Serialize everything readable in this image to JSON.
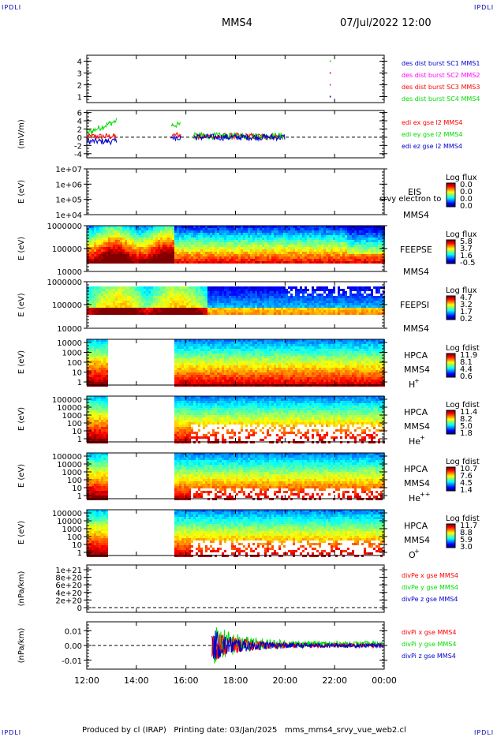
{
  "corners": {
    "tl": "IPDLI",
    "tr": "IPDLI",
    "bl": "IPDLI",
    "br": "IPDLI"
  },
  "header": {
    "title": "MMS4",
    "datetime": "07/Jul/2022 12:00"
  },
  "footer": "Produced by cl (IRAP)   Printing date: 03/Jan/2025   mms_mms4_srvy_vue_web2.cl",
  "colors": {
    "red": "#ff0000",
    "green": "#00dd00",
    "blue": "#0000cc",
    "magenta": "#ff00ff",
    "frame": "#000000"
  },
  "chart_data": [
    {
      "type": "scatter",
      "id": "burst",
      "y_ticks": [
        "1",
        "2",
        "3",
        "4"
      ],
      "ylim": [
        0.5,
        4.5
      ],
      "legend": [
        {
          "label": "des dist burst SC1 MMS1",
          "color": "#0000cc"
        },
        {
          "label": "des dist burst SC2 MMS2",
          "color": "#ff00ff"
        },
        {
          "label": "des dist burst SC3 MMS3",
          "color": "#ff0000"
        },
        {
          "label": "des dist burst SC4 MMS4",
          "color": "#00dd00"
        }
      ],
      "points": [
        {
          "x": 21.8,
          "y": 1,
          "c": "#0000cc"
        },
        {
          "x": 21.8,
          "y": 2,
          "c": "#ff00ff"
        },
        {
          "x": 21.8,
          "y": 3,
          "c": "#ff0000"
        },
        {
          "x": 21.8,
          "y": 4,
          "c": "#00dd00"
        }
      ]
    },
    {
      "type": "line",
      "id": "edi",
      "ylabel": "(mV/m)",
      "y_ticks": [
        "-4",
        "-2",
        "0",
        "2",
        "4",
        "6"
      ],
      "ylim": [
        -5,
        6.5
      ],
      "legend": [
        {
          "label": "edi ex gse l2 MMS4",
          "color": "#ff0000"
        },
        {
          "label": "edi ey gse l2 MMS4",
          "color": "#00dd00"
        },
        {
          "label": "edi ez gse l2 MMS4",
          "color": "#0000cc"
        }
      ],
      "segments": [
        [
          12.0,
          13.2
        ],
        [
          15.4,
          15.8
        ],
        [
          16.3,
          20.0
        ]
      ]
    },
    {
      "type": "heatmap",
      "id": "eis",
      "ylabel": "E (eV)",
      "y_ticks": [
        "1e+07",
        "1e+06",
        "1e+05",
        "1e+04"
      ],
      "labels": [
        "EIS",
        "MMS4"
      ],
      "overlay": "srvy electron to",
      "colorbar": {
        "title": "Log flux",
        "values": [
          "0.0",
          "0.0",
          "0.0",
          "0.0"
        ]
      }
    },
    {
      "type": "heatmap",
      "id": "feepse",
      "ylabel": "E (eV)",
      "y_ticks": [
        "1000000",
        "100000",
        "10000"
      ],
      "labels": [
        "FEEPSE",
        "MMS4"
      ],
      "colorbar": {
        "title": "Log flux",
        "values": [
          "5.8",
          "3.7",
          "1.6",
          "-0.5"
        ]
      }
    },
    {
      "type": "heatmap",
      "id": "feepsi",
      "ylabel": "E (eV)",
      "y_ticks": [
        "1000000",
        "100000",
        "10000"
      ],
      "labels": [
        "FEEPSI",
        "MMS4"
      ],
      "colorbar": {
        "title": "Log flux",
        "values": [
          "4.7",
          "3.2",
          "1.7",
          "0.2"
        ]
      }
    },
    {
      "type": "heatmap",
      "id": "hpca_h",
      "ylabel": "E (eV)",
      "y_ticks": [
        "10000",
        "1000",
        "100",
        "10",
        "1"
      ],
      "labels": [
        "HPCA",
        "MMS4"
      ],
      "species": "H",
      "charge": "+",
      "colorbar": {
        "title": "Log fdist",
        "values": [
          "11.9",
          "8.1",
          "4.4",
          "0.6"
        ]
      }
    },
    {
      "type": "heatmap",
      "id": "hpca_he1",
      "ylabel": "E (eV)",
      "y_ticks": [
        "100000",
        "10000",
        "1000",
        "100",
        "10",
        "1"
      ],
      "labels": [
        "HPCA",
        "MMS4"
      ],
      "species": "He",
      "charge": "+",
      "colorbar": {
        "title": "Log fdist",
        "values": [
          "11.4",
          "8.2",
          "5.0",
          "1.8"
        ]
      }
    },
    {
      "type": "heatmap",
      "id": "hpca_he2",
      "ylabel": "E (eV)",
      "y_ticks": [
        "100000",
        "10000",
        "1000",
        "100",
        "10",
        "1"
      ],
      "labels": [
        "HPCA",
        "MMS4"
      ],
      "species": "He",
      "charge": "++",
      "colorbar": {
        "title": "Log fdist",
        "values": [
          "10.7",
          "7.6",
          "4.5",
          "1.4"
        ]
      }
    },
    {
      "type": "heatmap",
      "id": "hpca_o",
      "ylabel": "E (eV)",
      "y_ticks": [
        "100000",
        "10000",
        "1000",
        "100",
        "10",
        "1"
      ],
      "labels": [
        "HPCA",
        "MMS4"
      ],
      "species": "O",
      "charge": "+",
      "colorbar": {
        "title": "Log fdist",
        "values": [
          "11.7",
          "8.8",
          "5.9",
          "3.0"
        ]
      }
    },
    {
      "type": "line",
      "id": "divpe",
      "ylabel": "(nPa/km)",
      "y_ticks": [
        "1e+21",
        "8e+20",
        "6e+20",
        "4e+20",
        "2e+20",
        "0"
      ],
      "ylim": [
        0,
        1e+21
      ],
      "legend": [
        {
          "label": "divPe x gse MMS4",
          "color": "#ff0000"
        },
        {
          "label": "divPe y gse MMS4",
          "color": "#00dd00"
        },
        {
          "label": "divPe z gse MMS4",
          "color": "#0000cc"
        }
      ]
    },
    {
      "type": "line",
      "id": "divpi",
      "ylabel": "(nPa/km)",
      "y_ticks": [
        "0.01",
        "0.00",
        "-0.01"
      ],
      "ylim": [
        -0.016,
        0.016
      ],
      "legend": [
        {
          "label": "divPi x gse MMS4",
          "color": "#ff0000"
        },
        {
          "label": "divPi y gse MMS4",
          "color": "#00dd00"
        },
        {
          "label": "divPi z gse MMS4",
          "color": "#0000cc"
        }
      ]
    }
  ],
  "x_axis": {
    "ticks": [
      "12:00",
      "14:00",
      "16:00",
      "18:00",
      "20:00",
      "22:00",
      "00:00"
    ],
    "range": [
      12,
      24
    ]
  }
}
